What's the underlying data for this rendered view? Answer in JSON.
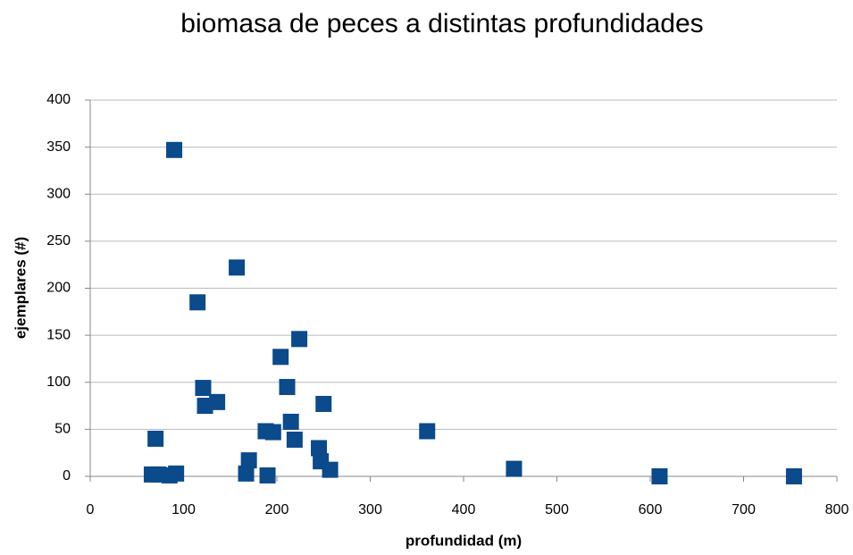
{
  "chart_data": {
    "type": "scatter",
    "title": "biomasa de peces a distintas profundidades",
    "x_label": "profundidad (m)",
    "y_label": "ejemplares (#)",
    "series": [
      {
        "name": "ejemplares",
        "color": "#0b4a8b",
        "x": [
          66,
          73,
          85,
          92,
          70,
          90,
          115,
          121,
          123,
          136,
          157,
          167,
          170,
          188,
          190,
          196,
          204,
          211,
          215,
          219,
          224,
          245,
          247,
          250,
          257,
          361,
          454,
          610,
          754
        ],
        "values": [
          2,
          2,
          1,
          3,
          40,
          347,
          185,
          94,
          75,
          79,
          222,
          3,
          17,
          48,
          1,
          47,
          127,
          95,
          58,
          39,
          146,
          30,
          16,
          77,
          7,
          48,
          8,
          0,
          0
        ]
      }
    ],
    "xlim": [
      0,
      800
    ],
    "xticks": [
      0,
      100,
      200,
      300,
      400,
      500,
      600,
      700,
      800
    ],
    "ylim": [
      0,
      400
    ],
    "yticks": [
      0,
      50,
      100,
      150,
      200,
      250,
      300,
      350,
      400
    ],
    "grid": true
  }
}
